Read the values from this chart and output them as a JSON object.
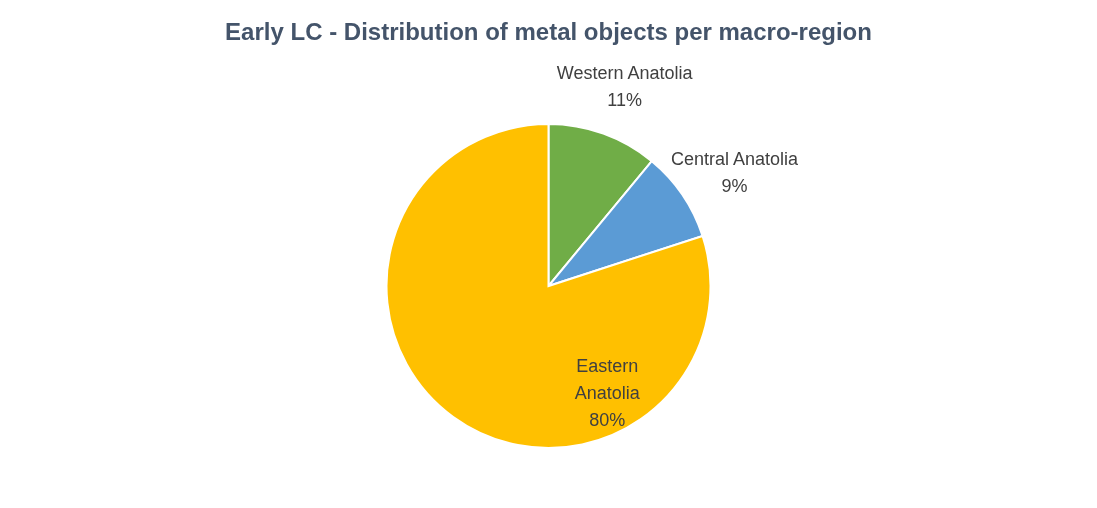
{
  "chart_data": {
    "type": "pie",
    "title": "Early LC - Distribution of metal objects per macro-region",
    "categories": [
      "Western Anatolia",
      "Central Anatolia",
      "Eastern Anatolia"
    ],
    "values": [
      11,
      9,
      80
    ],
    "colors": [
      "#70ad47",
      "#5b9bd5",
      "#ffc000"
    ],
    "value_labels": [
      "11%",
      "9%",
      "80%"
    ],
    "legend": false
  }
}
